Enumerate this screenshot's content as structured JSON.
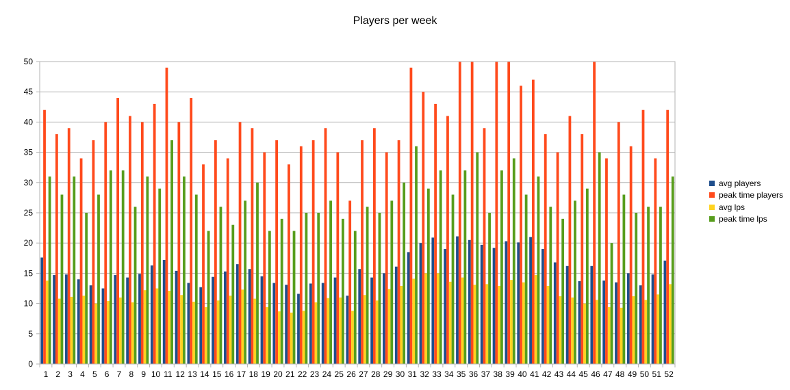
{
  "chart_data": {
    "type": "bar",
    "title": "Players per week",
    "xlabel": "",
    "ylabel": "",
    "ylim": [
      0,
      50
    ],
    "yticks": [
      0,
      5,
      10,
      15,
      20,
      25,
      30,
      35,
      40,
      45,
      50
    ],
    "grid": true,
    "legend_position": "right",
    "categories": [
      "1",
      "2",
      "3",
      "4",
      "5",
      "6",
      "7",
      "8",
      "9",
      "10",
      "11",
      "12",
      "13",
      "14",
      "15",
      "16",
      "17",
      "18",
      "19",
      "20",
      "21",
      "22",
      "23",
      "24",
      "25",
      "26",
      "27",
      "28",
      "29",
      "30",
      "31",
      "32",
      "33",
      "34",
      "35",
      "36",
      "37",
      "38",
      "39",
      "40",
      "41",
      "42",
      "43",
      "44",
      "45",
      "46",
      "47",
      "48",
      "49",
      "50",
      "51",
      "52"
    ],
    "series": [
      {
        "name": "avg players",
        "color": "#1f4e8c",
        "values": [
          17.6,
          14.7,
          14.8,
          14.0,
          13.0,
          12.5,
          14.7,
          14.3,
          14.9,
          16.3,
          17.2,
          15.4,
          13.4,
          12.7,
          14.4,
          15.3,
          16.5,
          15.7,
          14.5,
          13.4,
          13.1,
          11.6,
          13.3,
          13.4,
          14.3,
          11.3,
          15.7,
          14.3,
          15.0,
          16.1,
          18.5,
          20.0,
          20.9,
          19.0,
          21.1,
          20.5,
          19.7,
          19.2,
          20.3,
          20.1,
          21.0,
          19.0,
          16.8,
          16.2,
          13.7,
          16.2,
          13.8,
          13.5,
          15.0,
          13.0,
          14.8,
          17.1
        ]
      },
      {
        "name": "peak time players",
        "color": "#ff4a1c",
        "values": [
          42,
          38,
          39,
          34,
          37,
          40,
          44,
          41,
          40,
          43,
          49,
          40,
          44,
          33,
          37,
          34,
          40,
          39,
          35,
          37,
          33,
          36,
          37,
          39,
          35,
          27,
          37,
          39,
          35,
          37,
          49,
          45,
          43,
          41,
          50,
          50,
          39,
          50,
          50,
          46,
          47,
          38,
          35,
          41,
          38,
          50,
          34,
          40,
          36,
          42,
          34,
          42
        ]
      },
      {
        "name": "avg lps",
        "color": "#ffd320",
        "values": [
          13.8,
          10.8,
          11.1,
          11.3,
          10.0,
          10.4,
          11.0,
          10.2,
          12.2,
          12.5,
          12.1,
          11.4,
          10.3,
          9.4,
          10.5,
          11.3,
          12.3,
          10.8,
          9.4,
          8.7,
          8.5,
          8.8,
          10.2,
          10.9,
          11.0,
          8.8,
          11.4,
          10.5,
          12.4,
          12.9,
          14.1,
          15.0,
          15.0,
          13.6,
          14.3,
          13.1,
          13.2,
          12.9,
          13.9,
          13.5,
          14.7,
          12.9,
          11.2,
          11.0,
          10.0,
          10.6,
          9.4,
          9.3,
          11.2,
          10.6,
          11.5,
          13.2
        ]
      },
      {
        "name": "peak time lps",
        "color": "#579d1c",
        "values": [
          31,
          28,
          31,
          25,
          28,
          32,
          32,
          26,
          31,
          29,
          37,
          31,
          28,
          22,
          26,
          23,
          27,
          30,
          22,
          24,
          22,
          25,
          25,
          27,
          24,
          22,
          26,
          25,
          27,
          30,
          36,
          29,
          32,
          28,
          32,
          35,
          25,
          32,
          34,
          28,
          31,
          26,
          24,
          27,
          29,
          35,
          20,
          28,
          25,
          26,
          26,
          31
        ]
      }
    ]
  }
}
